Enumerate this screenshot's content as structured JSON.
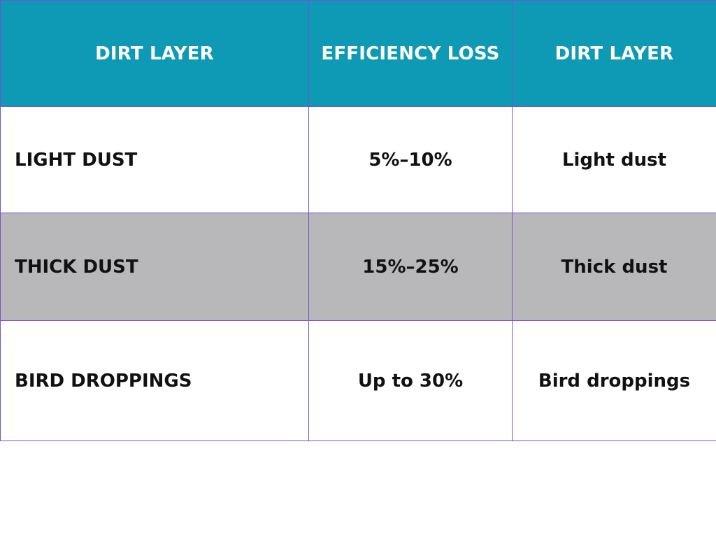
{
  "table": {
    "headers": [
      "DIRT LAYER",
      "EFFICIENCY LOSS",
      "DIRT LAYER"
    ],
    "rows": [
      {
        "type": "LIGHT DUST",
        "loss": "5%–10%",
        "name": "Light dust"
      },
      {
        "type": "THICK DUST",
        "loss": "15%–25%",
        "name": "Thick dust"
      },
      {
        "type": "BIRD DROPPINGS",
        "loss": "Up to 30%",
        "name": "Bird droppings"
      }
    ],
    "colors": {
      "header_bg": "#0e9ab5",
      "header_text": "#ffffff",
      "border": "#7a4fd6",
      "alt_row_bg": "#b8b7b9",
      "row_bg": "#ffffff"
    }
  }
}
